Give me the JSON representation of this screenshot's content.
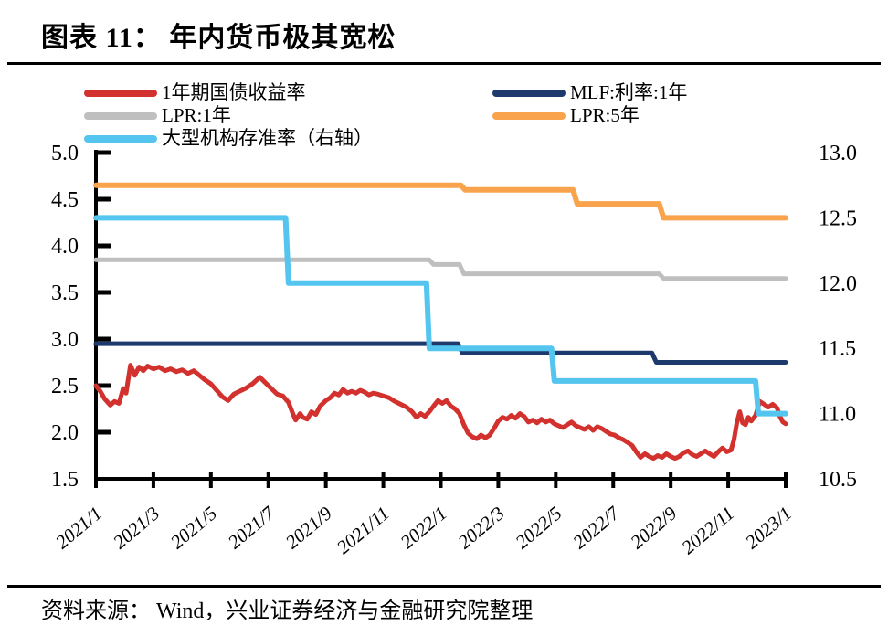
{
  "header": {
    "title": "图表 11： 年内货币极其宽松"
  },
  "footer": {
    "source": "资料来源： Wind，兴业证券经济与金融研究院整理"
  },
  "chart_data": {
    "type": "line",
    "title": "年内货币极其宽松",
    "grid": false,
    "legend_position": "top-left, two columns",
    "x_axis": {
      "unit": "year/month",
      "tick_labels": [
        "2021/1",
        "2021/3",
        "2021/5",
        "2021/7",
        "2021/9",
        "2021/11",
        "2022/1",
        "2022/3",
        "2022/5",
        "2022/7",
        "2022/9",
        "2022/11",
        "2023/1"
      ],
      "range_months": [
        0,
        24
      ],
      "tick_label_style": "rotated 40deg italic"
    },
    "left_axis": {
      "min": 1.5,
      "max": 5.0,
      "ticks": [
        5.0,
        4.5,
        4.0,
        3.5,
        3.0,
        2.5,
        2.0,
        1.5
      ]
    },
    "right_axis": {
      "min": 10.5,
      "max": 13.0,
      "ticks": [
        13.0,
        12.5,
        12.0,
        11.5,
        11.0,
        10.5
      ]
    },
    "legend": [
      {
        "label": "1年期国债收益率",
        "color": "#d2312d"
      },
      {
        "label": "MLF:利率:1年",
        "color": "#1e3a6d"
      },
      {
        "label": "LPR:1年",
        "color": "#bfbfbf"
      },
      {
        "label": "LPR:5年",
        "color": "#f9a34c"
      },
      {
        "label": "大型机构存准率（右轴）",
        "color": "#53c5ee"
      }
    ],
    "series": [
      {
        "name": "LPR:1年",
        "axis": "left",
        "color": "#bfbfbf",
        "width": 5,
        "points": [
          [
            0,
            3.85
          ],
          [
            11.6,
            3.85
          ],
          [
            11.75,
            3.8
          ],
          [
            12.65,
            3.8
          ],
          [
            12.8,
            3.7
          ],
          [
            19.6,
            3.7
          ],
          [
            19.75,
            3.65
          ],
          [
            24,
            3.65
          ]
        ]
      },
      {
        "name": "LPR:5年",
        "axis": "left",
        "color": "#f9a34c",
        "width": 6,
        "points": [
          [
            0,
            4.65
          ],
          [
            12.7,
            4.65
          ],
          [
            12.85,
            4.6
          ],
          [
            16.6,
            4.6
          ],
          [
            16.75,
            4.45
          ],
          [
            19.6,
            4.45
          ],
          [
            19.75,
            4.3
          ],
          [
            24,
            4.3
          ]
        ]
      },
      {
        "name": "MLF:利率:1年",
        "axis": "left",
        "color": "#1e3a6d",
        "width": 5,
        "points": [
          [
            0,
            2.95
          ],
          [
            12.6,
            2.95
          ],
          [
            12.75,
            2.85
          ],
          [
            19.35,
            2.85
          ],
          [
            19.5,
            2.75
          ],
          [
            24,
            2.75
          ]
        ]
      },
      {
        "name": "1年期国债收益率",
        "axis": "left",
        "color": "#d2312d",
        "width": 5,
        "points": [
          [
            0,
            2.5
          ],
          [
            0.15,
            2.44
          ],
          [
            0.3,
            2.36
          ],
          [
            0.5,
            2.29
          ],
          [
            0.65,
            2.33
          ],
          [
            0.8,
            2.31
          ],
          [
            0.95,
            2.47
          ],
          [
            1.05,
            2.42
          ],
          [
            1.2,
            2.72
          ],
          [
            1.35,
            2.61
          ],
          [
            1.5,
            2.7
          ],
          [
            1.65,
            2.66
          ],
          [
            1.8,
            2.71
          ],
          [
            2.0,
            2.68
          ],
          [
            2.2,
            2.7
          ],
          [
            2.4,
            2.66
          ],
          [
            2.6,
            2.68
          ],
          [
            2.8,
            2.65
          ],
          [
            3.0,
            2.67
          ],
          [
            3.2,
            2.63
          ],
          [
            3.4,
            2.66
          ],
          [
            3.6,
            2.61
          ],
          [
            3.8,
            2.56
          ],
          [
            4.0,
            2.52
          ],
          [
            4.2,
            2.45
          ],
          [
            4.4,
            2.38
          ],
          [
            4.6,
            2.34
          ],
          [
            4.8,
            2.41
          ],
          [
            5.0,
            2.44
          ],
          [
            5.2,
            2.47
          ],
          [
            5.45,
            2.52
          ],
          [
            5.7,
            2.59
          ],
          [
            5.9,
            2.53
          ],
          [
            6.1,
            2.47
          ],
          [
            6.3,
            2.41
          ],
          [
            6.5,
            2.39
          ],
          [
            6.7,
            2.32
          ],
          [
            6.85,
            2.2
          ],
          [
            6.95,
            2.13
          ],
          [
            7.1,
            2.2
          ],
          [
            7.2,
            2.16
          ],
          [
            7.35,
            2.14
          ],
          [
            7.5,
            2.22
          ],
          [
            7.65,
            2.19
          ],
          [
            7.8,
            2.28
          ],
          [
            8.0,
            2.34
          ],
          [
            8.15,
            2.37
          ],
          [
            8.3,
            2.42
          ],
          [
            8.45,
            2.4
          ],
          [
            8.6,
            2.46
          ],
          [
            8.75,
            2.42
          ],
          [
            8.9,
            2.44
          ],
          [
            9.05,
            2.42
          ],
          [
            9.2,
            2.45
          ],
          [
            9.35,
            2.43
          ],
          [
            9.5,
            2.4
          ],
          [
            9.65,
            2.42
          ],
          [
            9.8,
            2.41
          ],
          [
            10.0,
            2.39
          ],
          [
            10.2,
            2.37
          ],
          [
            10.4,
            2.33
          ],
          [
            10.6,
            2.3
          ],
          [
            10.8,
            2.27
          ],
          [
            11.0,
            2.22
          ],
          [
            11.15,
            2.16
          ],
          [
            11.3,
            2.2
          ],
          [
            11.45,
            2.17
          ],
          [
            11.6,
            2.22
          ],
          [
            11.75,
            2.28
          ],
          [
            11.9,
            2.34
          ],
          [
            12.05,
            2.31
          ],
          [
            12.2,
            2.34
          ],
          [
            12.35,
            2.28
          ],
          [
            12.5,
            2.25
          ],
          [
            12.65,
            2.2
          ],
          [
            12.8,
            2.08
          ],
          [
            12.95,
            1.99
          ],
          [
            13.1,
            1.95
          ],
          [
            13.25,
            1.93
          ],
          [
            13.4,
            1.97
          ],
          [
            13.55,
            1.94
          ],
          [
            13.7,
            1.97
          ],
          [
            13.85,
            2.04
          ],
          [
            14.0,
            2.12
          ],
          [
            14.15,
            2.16
          ],
          [
            14.3,
            2.14
          ],
          [
            14.45,
            2.18
          ],
          [
            14.6,
            2.15
          ],
          [
            14.75,
            2.2
          ],
          [
            14.9,
            2.17
          ],
          [
            15.05,
            2.11
          ],
          [
            15.2,
            2.13
          ],
          [
            15.35,
            2.1
          ],
          [
            15.5,
            2.14
          ],
          [
            15.65,
            2.11
          ],
          [
            15.8,
            2.13
          ],
          [
            15.95,
            2.09
          ],
          [
            16.1,
            2.07
          ],
          [
            16.25,
            2.05
          ],
          [
            16.4,
            2.08
          ],
          [
            16.55,
            2.11
          ],
          [
            16.7,
            2.07
          ],
          [
            16.85,
            2.05
          ],
          [
            17.0,
            2.03
          ],
          [
            17.15,
            2.06
          ],
          [
            17.3,
            2.02
          ],
          [
            17.45,
            2.06
          ],
          [
            17.6,
            2.04
          ],
          [
            17.75,
            2.01
          ],
          [
            17.9,
            1.98
          ],
          [
            18.05,
            1.97
          ],
          [
            18.2,
            1.94
          ],
          [
            18.35,
            1.92
          ],
          [
            18.5,
            1.89
          ],
          [
            18.65,
            1.86
          ],
          [
            18.8,
            1.79
          ],
          [
            18.95,
            1.73
          ],
          [
            19.1,
            1.77
          ],
          [
            19.25,
            1.74
          ],
          [
            19.4,
            1.72
          ],
          [
            19.55,
            1.75
          ],
          [
            19.7,
            1.73
          ],
          [
            19.85,
            1.77
          ],
          [
            20.0,
            1.74
          ],
          [
            20.15,
            1.72
          ],
          [
            20.3,
            1.74
          ],
          [
            20.45,
            1.78
          ],
          [
            20.6,
            1.8
          ],
          [
            20.75,
            1.76
          ],
          [
            20.9,
            1.74
          ],
          [
            21.05,
            1.77
          ],
          [
            21.2,
            1.8
          ],
          [
            21.35,
            1.77
          ],
          [
            21.5,
            1.74
          ],
          [
            21.65,
            1.79
          ],
          [
            21.8,
            1.83
          ],
          [
            21.95,
            1.79
          ],
          [
            22.1,
            1.81
          ],
          [
            22.2,
            1.92
          ],
          [
            22.3,
            2.1
          ],
          [
            22.4,
            2.22
          ],
          [
            22.5,
            2.1
          ],
          [
            22.6,
            2.08
          ],
          [
            22.7,
            2.16
          ],
          [
            22.8,
            2.12
          ],
          [
            22.95,
            2.18
          ],
          [
            23.1,
            2.33
          ],
          [
            23.25,
            2.3
          ],
          [
            23.4,
            2.27
          ],
          [
            23.55,
            2.3
          ],
          [
            23.7,
            2.26
          ],
          [
            23.8,
            2.17
          ],
          [
            23.9,
            2.11
          ],
          [
            24.0,
            2.09
          ]
        ]
      },
      {
        "name": "大型机构存准率（右轴）",
        "axis": "right",
        "color": "#53c5ee",
        "width": 6,
        "points": [
          [
            0,
            12.5
          ],
          [
            6.6,
            12.5
          ],
          [
            6.7,
            12.0
          ],
          [
            11.5,
            12.0
          ],
          [
            11.6,
            11.5
          ],
          [
            15.85,
            11.5
          ],
          [
            15.95,
            11.25
          ],
          [
            22.95,
            11.25
          ],
          [
            23.05,
            11.0
          ],
          [
            24,
            11.0
          ]
        ]
      }
    ]
  }
}
